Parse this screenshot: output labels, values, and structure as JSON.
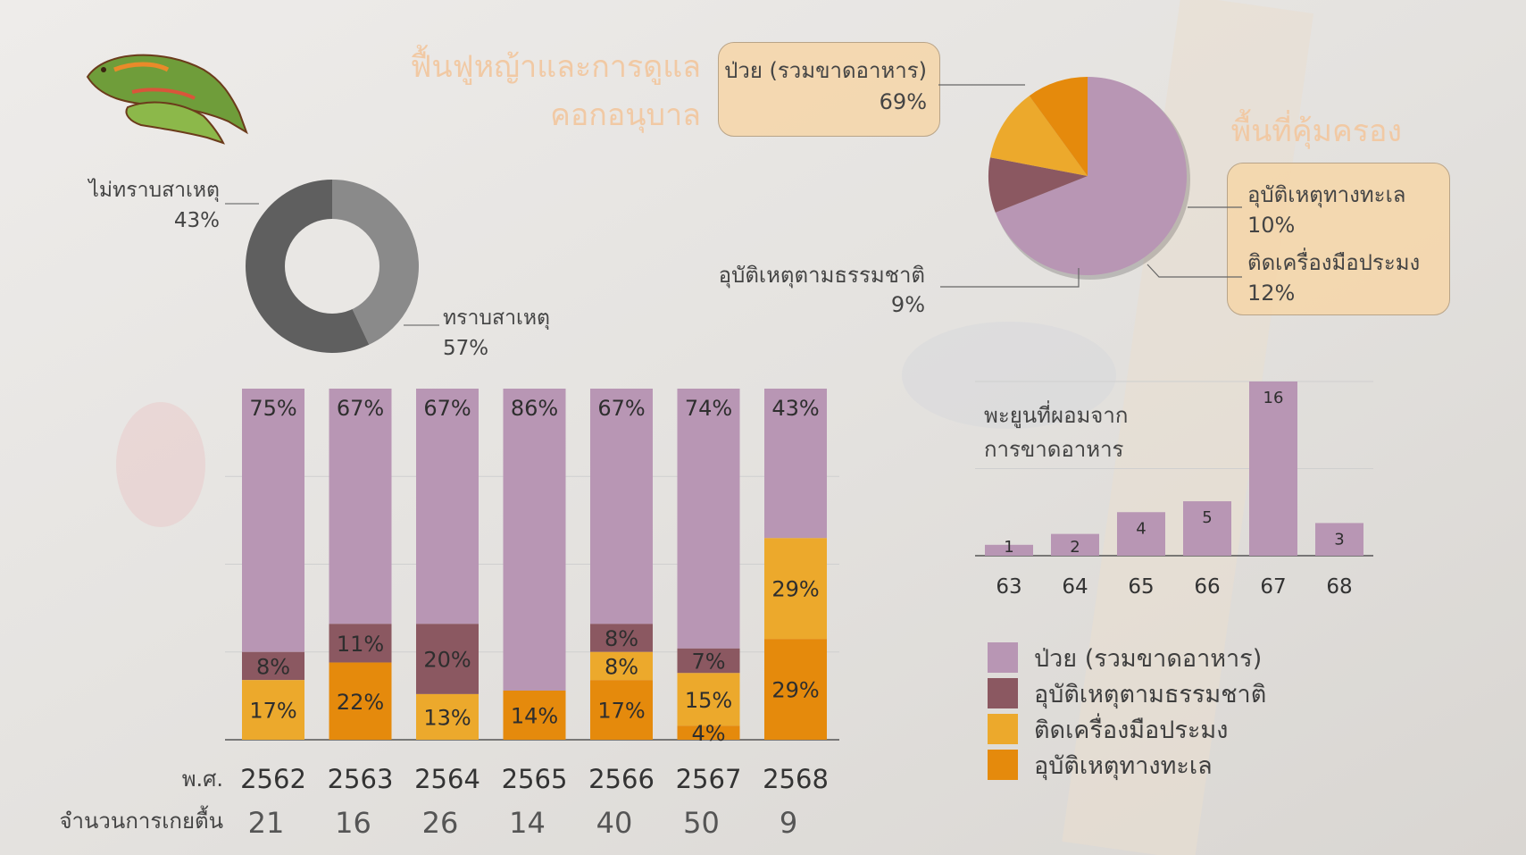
{
  "colors": {
    "sick": "#b896b4",
    "natural": "#8b5861",
    "gear": "#eca92c",
    "marine": "#e58a0c",
    "donut_dark": "#5f5f5f",
    "donut_light": "#8a8a8a",
    "title": "#f1c9a4"
  },
  "titles": {
    "restore_line1": "ฟื้นฟูหญ้าและการดูแล",
    "restore_line2": "คอกอนุบาล",
    "protected": "พื้นที่คุ้มครอง"
  },
  "donut": {
    "unknown_label": "ไม่ทราบสาเหตุ",
    "unknown_pct": "43%",
    "known_label": "ทราบสาเหตุ",
    "known_pct": "57%"
  },
  "pie_callouts": {
    "sick_label": "ป่วย (รวมขาดอาหาร)",
    "sick_pct": "69%",
    "marine_label": "อุบัติเหตุทางทะเล",
    "marine_pct": "10%",
    "gear_label": "ติดเครื่องมือประมง",
    "gear_pct": "12%",
    "natural_label": "อุบัติเหตุตามธรรมชาติ",
    "natural_pct": "9%"
  },
  "axis_labels": {
    "year_prefix": "พ.ศ.",
    "count_prefix": "จำนวนการเกยตื้น"
  },
  "small_chart_title_line1": "พะยูนที่ผอมจาก",
  "small_chart_title_line2": "การขาดอาหาร",
  "legend": [
    {
      "label": "ป่วย (รวมขาดอาหาร)",
      "color": "#b896b4"
    },
    {
      "label": "อุบัติเหตุตามธรรมชาติ",
      "color": "#8b5861"
    },
    {
      "label": "ติดเครื่องมือประมง",
      "color": "#eca92c"
    },
    {
      "label": "อุบัติเหตุทางทะเล",
      "color": "#e58a0c"
    }
  ],
  "chart_data": [
    {
      "type": "pie",
      "variant": "donut",
      "slices": [
        {
          "label": "ไม่ทราบสาเหตุ",
          "value": 43
        },
        {
          "label": "ทราบสาเหตุ",
          "value": 57
        }
      ]
    },
    {
      "type": "pie",
      "slices": [
        {
          "label": "ป่วย (รวมขาดอาหาร)",
          "value": 69
        },
        {
          "label": "อุบัติเหตุตามธรรมชาติ",
          "value": 9
        },
        {
          "label": "ติดเครื่องมือประมง",
          "value": 12
        },
        {
          "label": "อุบัติเหตุทางทะเล",
          "value": 10
        }
      ]
    },
    {
      "type": "bar",
      "stacked": true,
      "categories": [
        "2562",
        "2563",
        "2564",
        "2565",
        "2566",
        "2567",
        "2568"
      ],
      "counts": [
        "21",
        "16",
        "26",
        "14",
        "40",
        "50",
        "9"
      ],
      "ylim": [
        0,
        100
      ],
      "grid": true,
      "series": [
        {
          "name": "ป่วย (รวมขาดอาหาร)",
          "values": [
            75,
            67,
            67,
            86,
            67,
            74,
            43
          ],
          "labels": [
            "75%",
            "67%",
            "67%",
            "86%",
            "67%",
            "74%",
            "43%"
          ]
        },
        {
          "name": "อุบัติเหตุตามธรรมชาติ",
          "values": [
            8,
            11,
            20,
            0,
            8,
            7,
            0
          ],
          "labels": [
            "8%",
            "11%",
            "20%",
            "",
            "8%",
            "7%",
            ""
          ]
        },
        {
          "name": "ติดเครื่องมือประมง",
          "values": [
            17,
            0,
            13,
            0,
            8,
            15,
            29
          ],
          "labels": [
            "17%",
            "",
            "13%",
            "",
            "8%",
            "15%",
            "29%"
          ]
        },
        {
          "name": "อุบัติเหตุทางทะเล",
          "values": [
            0,
            22,
            0,
            14,
            17,
            4,
            29
          ],
          "labels": [
            "",
            "22%",
            "",
            "14%",
            "17%",
            "4%",
            "29%"
          ]
        }
      ]
    },
    {
      "type": "bar",
      "title_lines": [
        "พะยูนที่ผอมจาก",
        "การขาดอาหาร"
      ],
      "categories": [
        "63",
        "64",
        "65",
        "66",
        "67",
        "68"
      ],
      "values": [
        1,
        2,
        4,
        5,
        16,
        3
      ],
      "value_labels": [
        "1",
        "2",
        "4",
        "5",
        "16",
        "3"
      ],
      "ylim": [
        0,
        16
      ]
    }
  ]
}
